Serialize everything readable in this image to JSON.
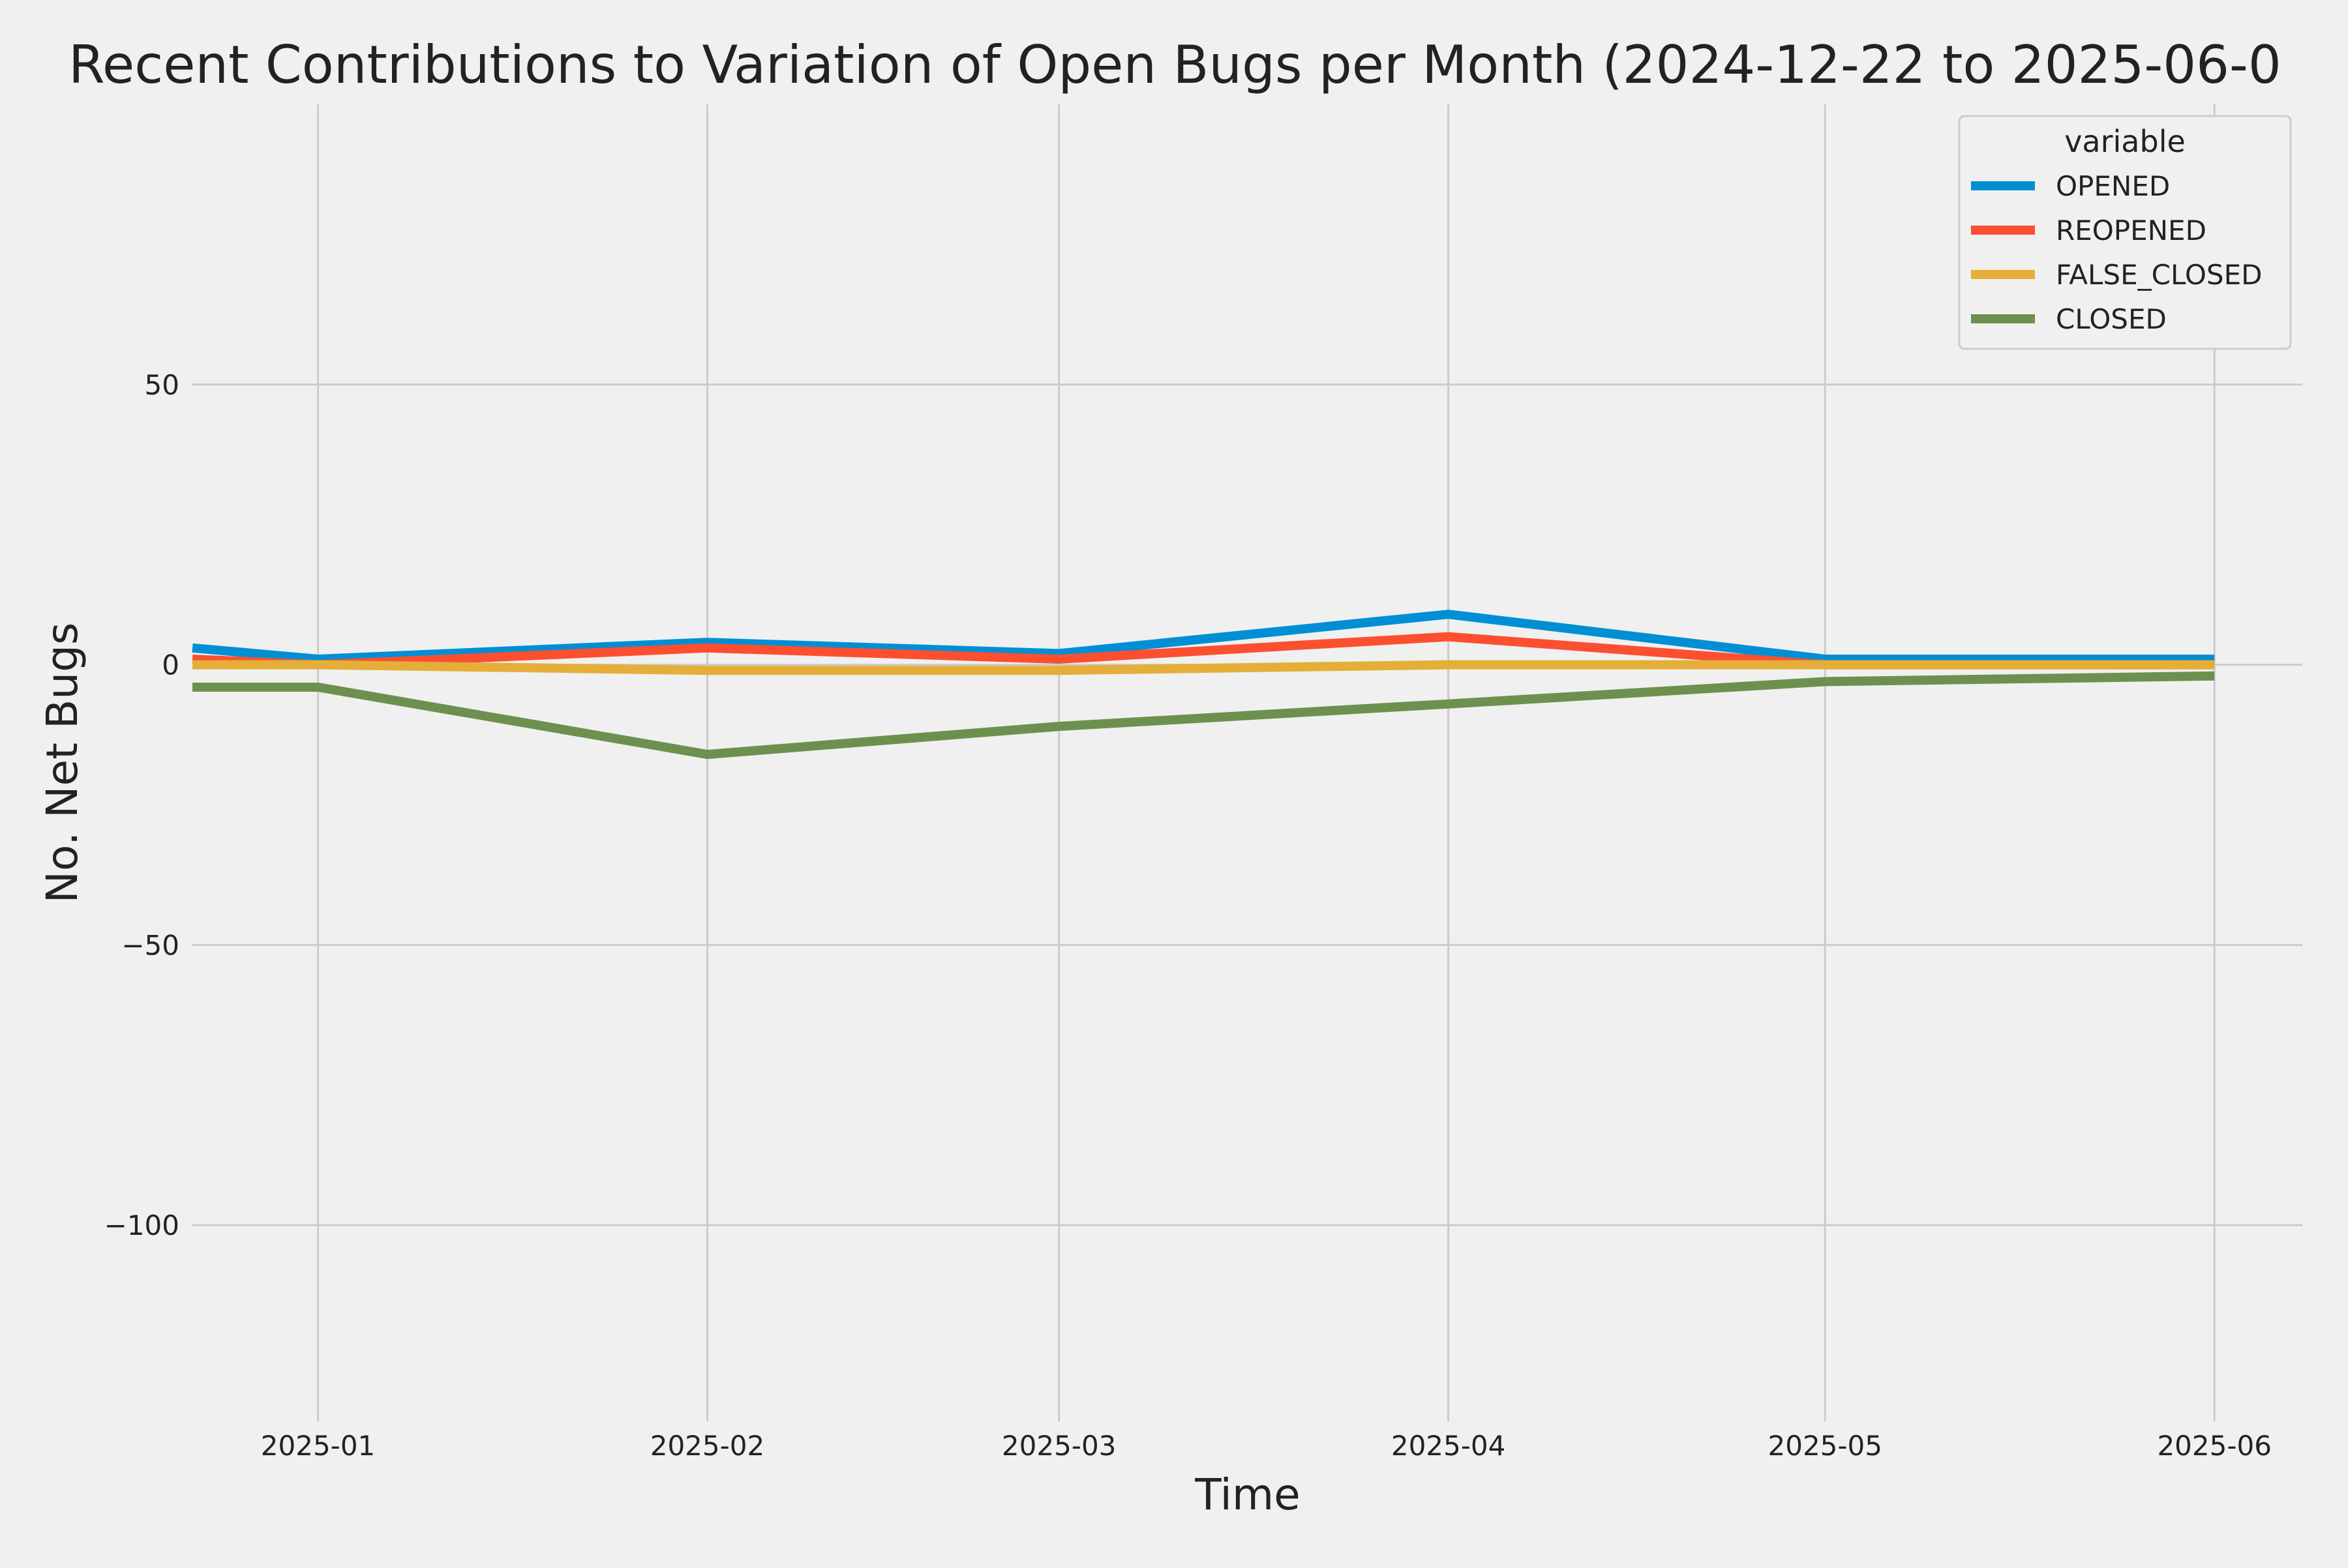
{
  "chart_data": {
    "type": "line",
    "title": "Recent Contributions to Variation of Open Bugs per Month (2024-12-22 to 2025-06-0",
    "xlabel": "Time",
    "ylabel": "No. Net Bugs",
    "x": [
      "2024-12-22",
      "2025-01-01",
      "2025-02-01",
      "2025-03-01",
      "2025-04-01",
      "2025-05-01",
      "2025-06-01"
    ],
    "x_ticks": [
      "2025-01",
      "2025-02",
      "2025-03",
      "2025-04",
      "2025-05",
      "2025-06"
    ],
    "y_ticks": [
      50,
      0,
      -50,
      -100
    ],
    "y_tick_labels": [
      "50",
      "0",
      "−50",
      "−100"
    ],
    "xlim": [
      "2024-12-22",
      "2025-06-08"
    ],
    "ylim": [
      -135,
      100
    ],
    "grid": true,
    "legend": {
      "title": "variable",
      "position": "top-right"
    },
    "series": [
      {
        "name": "OPENED",
        "color": "#008fd5",
        "values": [
          3,
          1,
          4,
          2,
          9,
          1,
          1
        ]
      },
      {
        "name": "REOPENED",
        "color": "#fc4f30",
        "values": [
          1,
          0,
          3,
          1,
          5,
          0,
          0
        ]
      },
      {
        "name": "FALSE_CLOSED",
        "color": "#e5ae38",
        "values": [
          0,
          0,
          -1,
          -1,
          0,
          0,
          0
        ]
      },
      {
        "name": "CLOSED",
        "color": "#6d904f",
        "values": [
          -4,
          -4,
          -16,
          -11,
          -7,
          -3,
          -2
        ]
      }
    ]
  }
}
